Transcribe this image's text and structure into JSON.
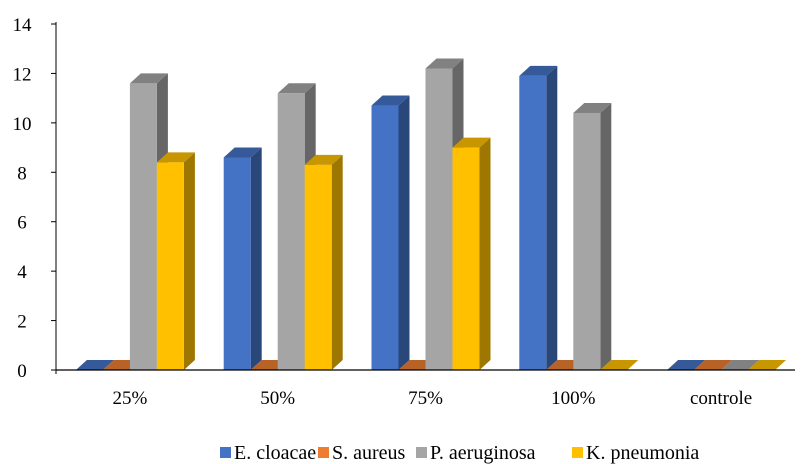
{
  "chart_data": {
    "type": "bar",
    "categories": [
      "25%",
      "50%",
      "75%",
      "100%",
      "controle"
    ],
    "series": [
      {
        "name": "E. cloacae",
        "values": [
          0,
          8.6,
          10.7,
          11.9,
          0
        ],
        "color": "#4472C4"
      },
      {
        "name": "S. aureus",
        "values": [
          0,
          0,
          0,
          0,
          0
        ],
        "color": "#ED7D31"
      },
      {
        "name": "P. aeruginosa",
        "values": [
          11.6,
          11.2,
          12.2,
          10.4,
          0
        ],
        "color": "#A5A5A5"
      },
      {
        "name": "K. pneumonia",
        "values": [
          8.4,
          8.3,
          9.0,
          0,
          0
        ],
        "color": "#FFC000"
      }
    ],
    "yticks": [
      "0",
      "2",
      "4",
      "6",
      "8",
      "10",
      "12",
      "14"
    ],
    "ylim": [
      0,
      14
    ],
    "style": "3d-clustered-column",
    "legend_position": "bottom"
  }
}
